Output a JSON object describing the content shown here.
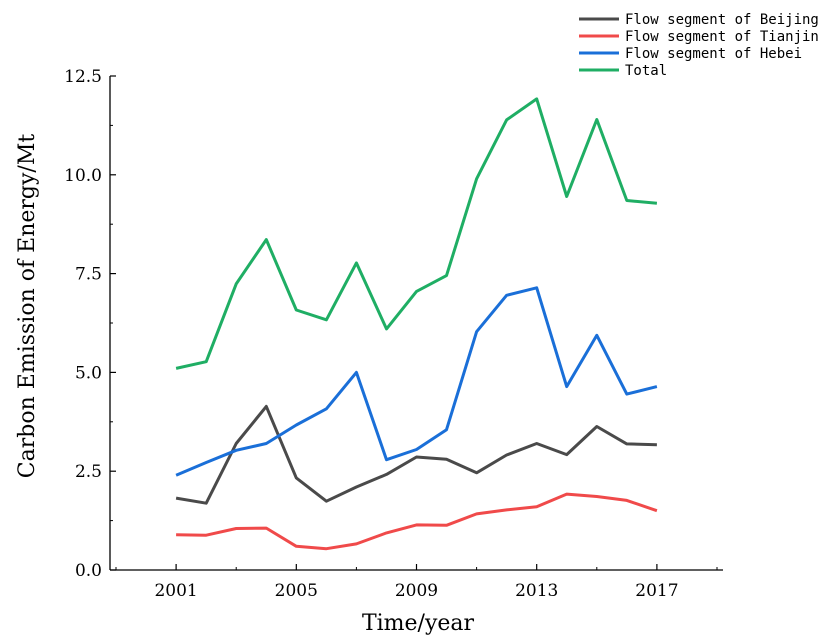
{
  "chart_data": {
    "type": "line",
    "title": "",
    "xlabel": "Time/year",
    "ylabel": "Carbon Emission of Energy/Mt",
    "xlim": [
      1998.8,
      2019.2
    ],
    "ylim": [
      0,
      12.5
    ],
    "x": [
      2001,
      2002,
      2003,
      2004,
      2005,
      2006,
      2007,
      2008,
      2009,
      2010,
      2011,
      2012,
      2013,
      2014,
      2015,
      2016,
      2017
    ],
    "xticks": [
      2001,
      2005,
      2009,
      2013,
      2017
    ],
    "xtick_labels": [
      "2001",
      "2005",
      "2009",
      "2013",
      "2017"
    ],
    "yticks": [
      0,
      2.5,
      5.0,
      7.5,
      10.0,
      12.5
    ],
    "ytick_labels": [
      "0.0",
      "2.5",
      "5.0",
      "7.5",
      "10.0",
      "12.5"
    ],
    "grid": false,
    "legend_position": "top-right",
    "series": [
      {
        "name": "Flow segment of Beijing",
        "color": "#4a4a4a",
        "values": [
          1.82,
          1.69,
          3.2,
          4.14,
          2.33,
          1.74,
          2.1,
          2.42,
          2.86,
          2.8,
          2.46,
          2.91,
          3.2,
          2.92,
          3.63,
          3.19,
          3.17
        ]
      },
      {
        "name": "Flow segment of Tianjin",
        "color": "#f04a4a",
        "values": [
          0.89,
          0.88,
          1.05,
          1.06,
          0.6,
          0.54,
          0.66,
          0.94,
          1.14,
          1.13,
          1.42,
          1.52,
          1.6,
          1.92,
          1.86,
          1.76,
          1.5
        ]
      },
      {
        "name": "Flow segment of Hebei",
        "color": "#1a6fd8",
        "values": [
          2.4,
          2.72,
          3.03,
          3.2,
          3.67,
          4.08,
          5.0,
          2.79,
          3.05,
          3.55,
          6.03,
          6.95,
          7.14,
          4.64,
          5.94,
          4.45,
          4.64
        ]
      },
      {
        "name": "Total",
        "color": "#1fae64",
        "values": [
          5.1,
          5.27,
          7.24,
          8.36,
          6.58,
          6.33,
          7.77,
          6.1,
          7.05,
          7.45,
          9.9,
          11.39,
          11.92,
          9.45,
          11.4,
          9.35,
          9.28
        ]
      }
    ]
  }
}
